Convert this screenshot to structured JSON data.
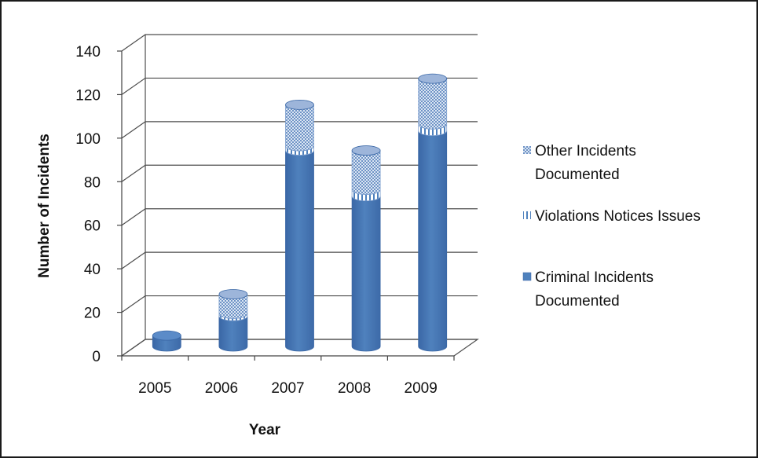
{
  "chart_data": {
    "type": "bar",
    "stacked": true,
    "three_d": true,
    "categories": [
      "2005",
      "2006",
      "2007",
      "2008",
      "2009"
    ],
    "series": [
      {
        "name": "Criminal Incidents Documented",
        "values": [
          5,
          14,
          90,
          69,
          99
        ],
        "color": "#4F81BD",
        "pattern": "solid"
      },
      {
        "name": "Violations Notices Issues",
        "values": [
          0,
          1,
          2,
          3,
          3
        ],
        "color": "#4F81BD",
        "pattern": "vertical-lines"
      },
      {
        "name": "Other Incidents Documented",
        "values": [
          0,
          9,
          19,
          18,
          21
        ],
        "color": "#4F81BD",
        "pattern": "checker"
      }
    ],
    "yticks": [
      0,
      20,
      40,
      60,
      80,
      100,
      120,
      140
    ],
    "ylim": [
      0,
      140
    ],
    "xlabel": "Year",
    "ylabel": "Number of Incidents",
    "legend": {
      "position": "right",
      "order": [
        2,
        1,
        0
      ],
      "entries": [
        [
          "Other Incidents",
          "Documented"
        ],
        [
          "Violations Notices Issues"
        ],
        [
          "Criminal Incidents",
          "Documented"
        ]
      ]
    },
    "grid": true
  }
}
